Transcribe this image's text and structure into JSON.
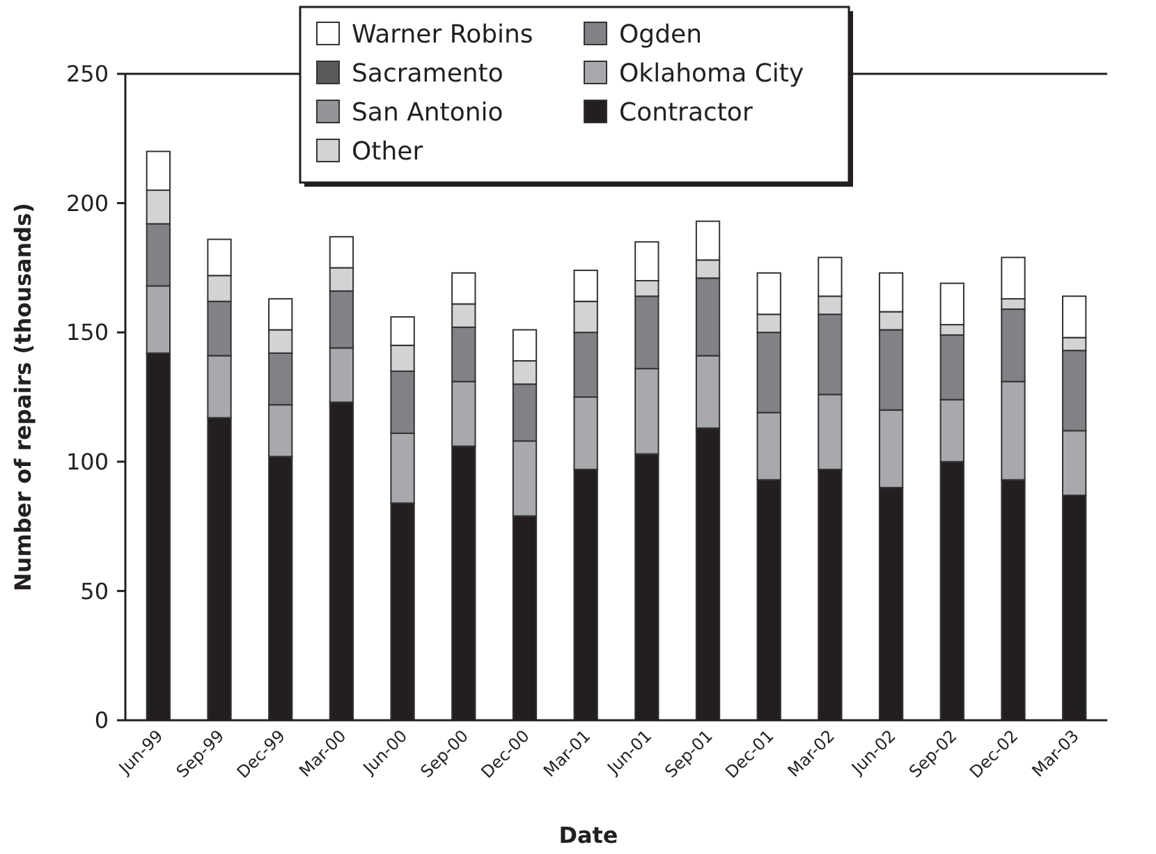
{
  "chart_data": {
    "type": "bar",
    "stacked": true,
    "xlabel": "Date",
    "ylabel": "Number of repairs (thousands)",
    "categories": [
      "Jun-99",
      "Sep-99",
      "Dec-99",
      "Mar-00",
      "Jun-00",
      "Sep-00",
      "Dec-00",
      "Mar-01",
      "Jun-01",
      "Sep-01",
      "Dec-01",
      "Mar-02",
      "Jun-02",
      "Sep-02",
      "Dec-02",
      "Mar-03"
    ],
    "series": [
      {
        "name": "Contractor",
        "color": "#231f20",
        "values": [
          142,
          117,
          102,
          123,
          84,
          106,
          79,
          97,
          103,
          113,
          93,
          97,
          90,
          100,
          93,
          87
        ]
      },
      {
        "name": "Oklahoma City",
        "color": "#a7a9ac",
        "values": [
          26,
          24,
          20,
          21,
          27,
          25,
          29,
          28,
          33,
          28,
          26,
          29,
          30,
          24,
          38,
          25
        ]
      },
      {
        "name": "Ogden",
        "color": "#808285",
        "values": [
          24,
          21,
          20,
          22,
          24,
          21,
          22,
          25,
          28,
          30,
          31,
          31,
          31,
          25,
          28,
          31
        ]
      },
      {
        "name": "Other",
        "color": "#d1d3d4",
        "values": [
          13,
          10,
          9,
          9,
          10,
          9,
          9,
          12,
          6,
          7,
          7,
          7,
          7,
          4,
          4,
          5
        ]
      },
      {
        "name": "San Antonio",
        "color": "#939598",
        "values": [
          0,
          0,
          0,
          0,
          0,
          0,
          0,
          0,
          0,
          0,
          0,
          0,
          0,
          0,
          0,
          0
        ]
      },
      {
        "name": "Sacramento",
        "color": "#58595b",
        "values": [
          0,
          0,
          0,
          0,
          0,
          0,
          0,
          0,
          0,
          0,
          0,
          0,
          0,
          0,
          0,
          0
        ]
      },
      {
        "name": "Warner Robins",
        "color": "#ffffff",
        "values": [
          15,
          14,
          12,
          12,
          11,
          12,
          12,
          12,
          15,
          15,
          16,
          15,
          15,
          16,
          16,
          16
        ]
      }
    ],
    "ylim": [
      0,
      250
    ],
    "yticks": [
      0,
      50,
      100,
      150,
      200,
      250
    ],
    "grid": false,
    "legend": "top"
  }
}
